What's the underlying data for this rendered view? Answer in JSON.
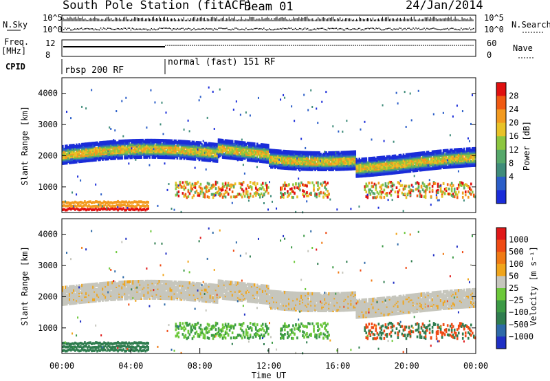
{
  "header": {
    "station_title": "South Pole Station (fitACF)",
    "beam": "Beam 01",
    "date": "24/Jan/2014"
  },
  "top_panels": {
    "nsky_label": "N.Sky",
    "nsky_ticks": [
      "10^5",
      "10^0"
    ],
    "nsearch_label": "N.Search",
    "nsearch_ticks": [
      "10^5",
      "10^0"
    ],
    "freq_label": "Freq.",
    "freq_unit": "[MHz]",
    "freq_ticks": [
      "12",
      "8"
    ],
    "nave_label": "Nave",
    "nave_ticks": [
      "60",
      "0"
    ],
    "cpid_label": "CPID",
    "cpid_modes": [
      "rbsp 200 RF",
      "normal (fast) 151 RF"
    ]
  },
  "chart_data": [
    {
      "type": "heatmap",
      "title": "",
      "ylabel": "Slant Range [km]",
      "xlabel": "",
      "xlim": [
        "00:00",
        "24:00"
      ],
      "ylim": [
        180,
        4500
      ],
      "yticks": [
        1000,
        2000,
        3000,
        4000
      ],
      "colorbar_label": "Power [dB]",
      "colorbar_ticks": [
        4,
        8,
        12,
        16,
        20,
        24,
        28
      ],
      "colorbar_colors": [
        "#1a2cd9",
        "#2b5ec8",
        "#3f8c7a",
        "#56a86a",
        "#8cc63f",
        "#e8c227",
        "#f29a1f",
        "#f05a12",
        "#e01010"
      ]
    },
    {
      "type": "heatmap",
      "title": "",
      "ylabel": "Slant Range [km]",
      "xlabel": "Time UT",
      "xlim": [
        "00:00",
        "24:00"
      ],
      "ylim": [
        180,
        4500
      ],
      "yticks": [
        1000,
        2000,
        3000,
        4000
      ],
      "xticks": [
        "00:00",
        "04:00",
        "08:00",
        "12:00",
        "16:00",
        "20:00",
        "00:00"
      ],
      "colorbar_label": "Velocity [m s⁻¹]",
      "colorbar_ticks": [
        "1000",
        "500",
        "100",
        "50",
        "25",
        "−25",
        "−100",
        "−500",
        "−1000"
      ],
      "colorbar_colors": [
        "#1f2fc4",
        "#2e6aa8",
        "#2f7d4f",
        "#3c9a45",
        "#6cc83a",
        "#c6c6bd",
        "#f0a51c",
        "#f07a14",
        "#ef4a14",
        "#e01818"
      ]
    }
  ]
}
